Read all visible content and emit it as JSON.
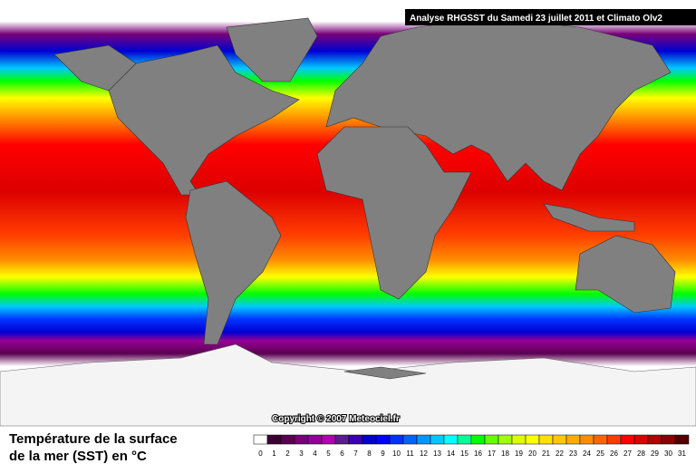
{
  "header": {
    "title": "Analyse RHGSST  du Samedi 23 juillet 2011 et Climato Olv2"
  },
  "map": {
    "copyright": "Copyright © 2007 Meteociel.fr"
  },
  "legend": {
    "title_lines": [
      "Température de la surface",
      "de la mer (SST) en °C"
    ],
    "ticks": [
      0,
      1,
      2,
      3,
      4,
      5,
      6,
      7,
      8,
      9,
      10,
      11,
      12,
      13,
      14,
      15,
      16,
      17,
      18,
      19,
      20,
      21,
      22,
      23,
      24,
      25,
      26,
      27,
      28,
      29,
      30,
      31
    ],
    "colors": [
      "#ffffff",
      "#3c0032",
      "#5a0050",
      "#780078",
      "#960096",
      "#b400b4",
      "#5a1e8c",
      "#3c00b4",
      "#0000d2",
      "#0000ff",
      "#0032ff",
      "#0064ff",
      "#0096ff",
      "#00c8ff",
      "#00ffff",
      "#00ff96",
      "#00ff00",
      "#64ff00",
      "#a0ff00",
      "#dcff00",
      "#ffff00",
      "#ffe100",
      "#ffc800",
      "#ffaa00",
      "#ff8c00",
      "#ff6400",
      "#ff3c00",
      "#ff0000",
      "#dc0000",
      "#b40000",
      "#8c0000",
      "#500000"
    ]
  }
}
